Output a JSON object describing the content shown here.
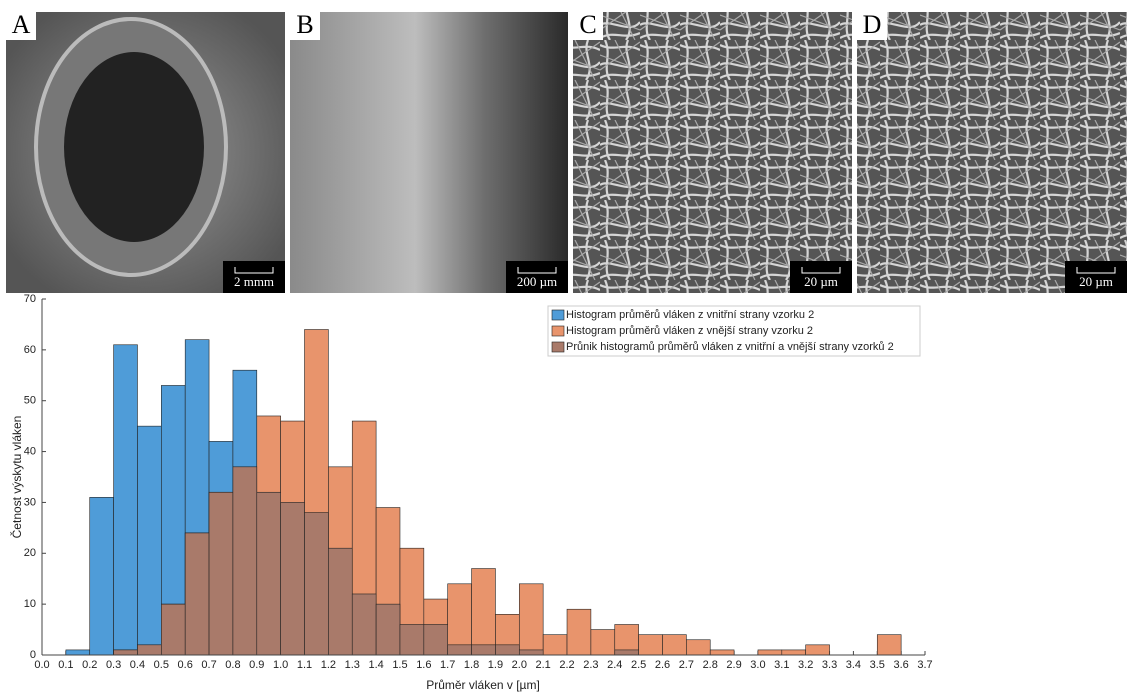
{
  "images": [
    {
      "label": "A",
      "scale": "2 mmm"
    },
    {
      "label": "B",
      "scale": "200 µm"
    },
    {
      "label": "C",
      "scale": "20 µm"
    },
    {
      "label": "D",
      "scale": "20 µm"
    }
  ],
  "chart_data": {
    "type": "histogram",
    "x_label": "Průměr vláken v [µm]",
    "y_label": "Četnost výskytu vláken",
    "bins": [
      0,
      0.1,
      0.2,
      0.3,
      0.4,
      0.5,
      0.6,
      0.7,
      0.8,
      0.9,
      1,
      1.1,
      1.2,
      1.3,
      1.4,
      1.5,
      1.6,
      1.7,
      1.8,
      1.9,
      2,
      2.1,
      2.2,
      2.3,
      2.4,
      2.5,
      2.6,
      2.7,
      2.8,
      2.9,
      3,
      3.1,
      3.2,
      3.3,
      3.4,
      3.5,
      3.6,
      3.7
    ],
    "series": [
      {
        "name": "Histogram průměrů vláken z vnitřní strany vzorku 2",
        "color": "#4f9cd8",
        "values": [
          0,
          1,
          31,
          61,
          45,
          53,
          62,
          42,
          56,
          32,
          30,
          28,
          21,
          12,
          10,
          6,
          6,
          2,
          2,
          2,
          1,
          0,
          0,
          0,
          1,
          0,
          0,
          0,
          0,
          0,
          0,
          0,
          0,
          0,
          0,
          0,
          0
        ]
      },
      {
        "name": "Histogram průměrů vláken z vnější strany vzorku 2",
        "color": "#e8946c",
        "values": [
          0,
          0,
          0,
          1,
          2,
          10,
          24,
          32,
          37,
          47,
          46,
          64,
          37,
          46,
          29,
          21,
          11,
          14,
          17,
          8,
          14,
          4,
          9,
          5,
          6,
          4,
          4,
          3,
          1,
          0,
          1,
          1,
          2,
          0,
          0,
          4,
          0
        ]
      },
      {
        "name": "Průnik histogramů průměrů vláken z vnitřní a vnější strany vzorků 2",
        "color": "#a97a6a",
        "values": [
          0,
          0,
          0,
          1,
          2,
          10,
          24,
          32,
          37,
          32,
          30,
          28,
          21,
          12,
          10,
          6,
          6,
          2,
          2,
          2,
          1,
          0,
          0,
          0,
          1,
          0,
          0,
          0,
          0,
          0,
          0,
          0,
          0,
          0,
          0,
          0,
          0
        ]
      }
    ],
    "xlim": [
      0,
      3.7
    ],
    "xticks": [
      {
        "value": 0,
        "label": "0.0"
      },
      0.1,
      0.2,
      0.3,
      0.4,
      0.5,
      0.6,
      0.7,
      0.8,
      0.9,
      {
        "value": 1,
        "label": "1.0"
      },
      1.1,
      1.2,
      1.3,
      1.4,
      1.5,
      1.6,
      1.7,
      1.8,
      1.9,
      {
        "value": 2,
        "label": "2.0"
      },
      2.1,
      2.2,
      2.3,
      2.4,
      2.5,
      2.6,
      2.7,
      2.8,
      2.9,
      {
        "value": 3,
        "label": "3.0"
      },
      3.1,
      3.2,
      3.3,
      3.4,
      3.5,
      3.6,
      3.7
    ],
    "ylim": [
      0,
      70
    ],
    "yticks": [
      0,
      10,
      20,
      30,
      40,
      50,
      60,
      70
    ],
    "legend": "top-right"
  }
}
